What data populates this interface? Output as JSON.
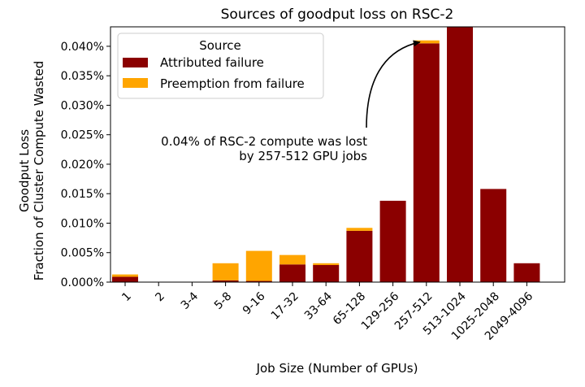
{
  "chart_data": {
    "type": "bar",
    "stacked": true,
    "title": "Sources of goodput loss on RSC-2",
    "xlabel": "Job Size (Number of GPUs)",
    "ylabel_line1": "Goodput Loss",
    "ylabel_line2": "Fraction of Cluster Compute Wasted",
    "ylim": [
      0,
      0.0433
    ],
    "y_ticks": [
      0,
      0.005,
      0.01,
      0.015,
      0.02,
      0.025,
      0.03,
      0.035,
      0.04
    ],
    "y_tick_labels": [
      "0.000%",
      "0.005%",
      "0.010%",
      "0.015%",
      "0.020%",
      "0.025%",
      "0.030%",
      "0.035%",
      "0.040%"
    ],
    "categories": [
      "1",
      "2",
      "3-4",
      "5-8",
      "9-16",
      "17-32",
      "33-64",
      "65-128",
      "129-256",
      "257-512",
      "513-1024",
      "1025-2048",
      "2049-4096"
    ],
    "legend": {
      "title": "Source",
      "position": "top-left"
    },
    "series": [
      {
        "name": "Attributed failure",
        "color": "#8b0000",
        "values": [
          0.0009,
          0,
          0,
          0.0003,
          0.0002,
          0.003,
          0.0029,
          0.0087,
          0.0138,
          0.0405,
          0.0433,
          0.0158,
          0.0032
        ]
      },
      {
        "name": "Preemption from failure",
        "color": "#ffa500",
        "values": [
          0.0004,
          0,
          0,
          0.0029,
          0.0051,
          0.0016,
          0.0003,
          0.0005,
          0,
          0.0005,
          0,
          0,
          0
        ]
      }
    ],
    "annotation": {
      "line1": "0.04% of RSC-2 compute was lost",
      "line2": "by 257-512 GPU jobs",
      "target_category": "257-512"
    }
  }
}
